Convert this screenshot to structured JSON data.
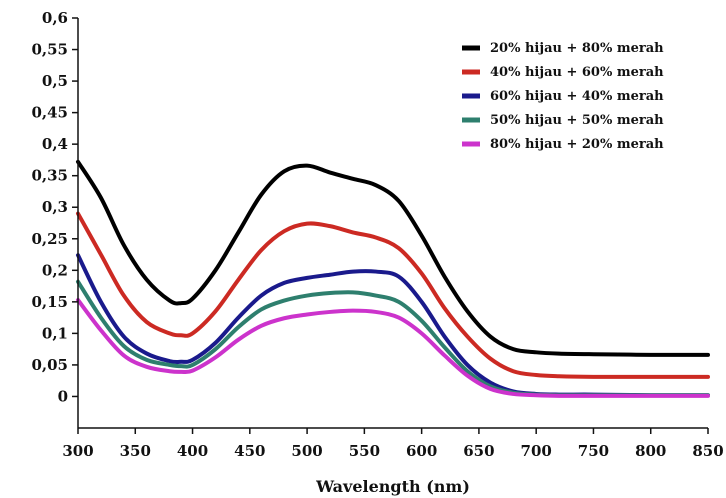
{
  "chart_data": {
    "type": "line",
    "title": "",
    "xlabel": "Wavelength (nm)",
    "ylabel": "",
    "xlim": [
      300,
      850
    ],
    "ylim": [
      -0.05,
      0.6
    ],
    "x_ticks": [
      300,
      350,
      400,
      450,
      500,
      550,
      600,
      650,
      700,
      750,
      800,
      850
    ],
    "x_tick_labels": [
      "300",
      "350",
      "400",
      "450",
      "500",
      "550",
      "600",
      "650",
      "700",
      "750",
      "800",
      "850"
    ],
    "y_ticks": [
      0,
      0.05,
      0.1,
      0.15,
      0.2,
      0.25,
      0.3,
      0.35,
      0.4,
      0.45,
      0.5,
      0.55,
      0.6
    ],
    "y_tick_labels": [
      "0",
      "0,05",
      "0,1",
      "0,15",
      "0,2",
      "0,25",
      "0,3",
      "0,35",
      "0,4",
      "0,45",
      "0,5",
      "0,55",
      "0,6"
    ],
    "grid": false,
    "legend_position": "top-right",
    "x": [
      300,
      320,
      340,
      360,
      380,
      390,
      400,
      420,
      440,
      460,
      480,
      500,
      520,
      540,
      560,
      580,
      600,
      620,
      640,
      660,
      680,
      700,
      720,
      750,
      800,
      850
    ],
    "series": [
      {
        "name": "20% hijau + 80% merah",
        "color": "#000000",
        "values": [
          0.372,
          0.315,
          0.24,
          0.185,
          0.152,
          0.148,
          0.155,
          0.2,
          0.26,
          0.32,
          0.357,
          0.366,
          0.355,
          0.345,
          0.335,
          0.31,
          0.255,
          0.19,
          0.135,
          0.095,
          0.075,
          0.07,
          0.068,
          0.067,
          0.066,
          0.066
        ]
      },
      {
        "name": "40% hijau + 60% merah",
        "color": "#cc2a23",
        "values": [
          0.29,
          0.225,
          0.16,
          0.118,
          0.1,
          0.097,
          0.1,
          0.135,
          0.185,
          0.232,
          0.262,
          0.274,
          0.27,
          0.26,
          0.252,
          0.235,
          0.195,
          0.14,
          0.095,
          0.06,
          0.04,
          0.034,
          0.032,
          0.031,
          0.031,
          0.031
        ]
      },
      {
        "name": "60% hijau + 40% merah",
        "color": "#1a1a8c",
        "values": [
          0.224,
          0.15,
          0.095,
          0.068,
          0.056,
          0.055,
          0.058,
          0.085,
          0.125,
          0.16,
          0.18,
          0.188,
          0.193,
          0.198,
          0.198,
          0.19,
          0.15,
          0.095,
          0.05,
          0.022,
          0.008,
          0.004,
          0.003,
          0.003,
          0.002,
          0.002
        ]
      },
      {
        "name": "50% hijau + 50% merah",
        "color": "#2e7f6e",
        "values": [
          0.182,
          0.125,
          0.08,
          0.058,
          0.05,
          0.048,
          0.05,
          0.075,
          0.11,
          0.138,
          0.152,
          0.16,
          0.164,
          0.165,
          0.16,
          0.15,
          0.12,
          0.078,
          0.04,
          0.016,
          0.006,
          0.003,
          0.002,
          0.002,
          0.002,
          0.002
        ]
      },
      {
        "name": "80% hijau + 20% merah",
        "color": "#cc33cc",
        "values": [
          0.153,
          0.105,
          0.065,
          0.047,
          0.04,
          0.039,
          0.041,
          0.062,
          0.09,
          0.112,
          0.124,
          0.13,
          0.134,
          0.136,
          0.134,
          0.125,
          0.1,
          0.065,
          0.033,
          0.012,
          0.004,
          0.002,
          0.001,
          0.001,
          0.001,
          0.001
        ]
      }
    ]
  }
}
